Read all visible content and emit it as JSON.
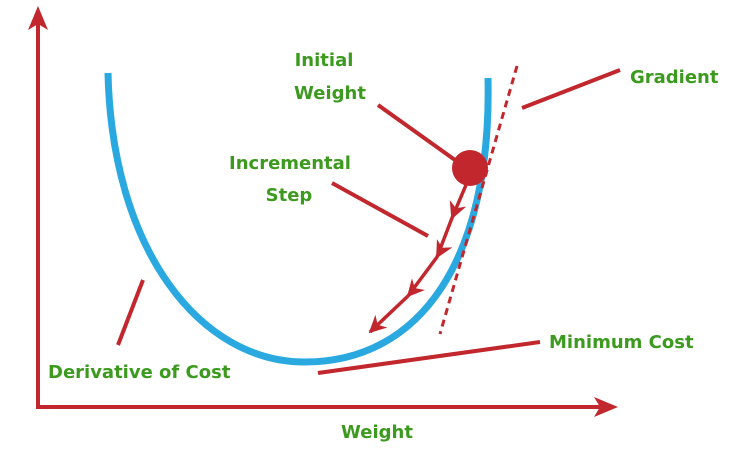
{
  "colors": {
    "axis": "#c1272d",
    "curve": "#29a9e0",
    "label": "#3c9a1f",
    "marker": "#c1272d"
  },
  "labels": {
    "initial_weight_line1": "Initial",
    "initial_weight_line2": "Weight",
    "incremental_step_line1": "Incremental",
    "incremental_step_line2": "Step",
    "gradient": "Gradient",
    "minimum_cost": "Minimum Cost",
    "derivative_of_cost": "Derivative of Cost",
    "x_axis": "Weight"
  }
}
